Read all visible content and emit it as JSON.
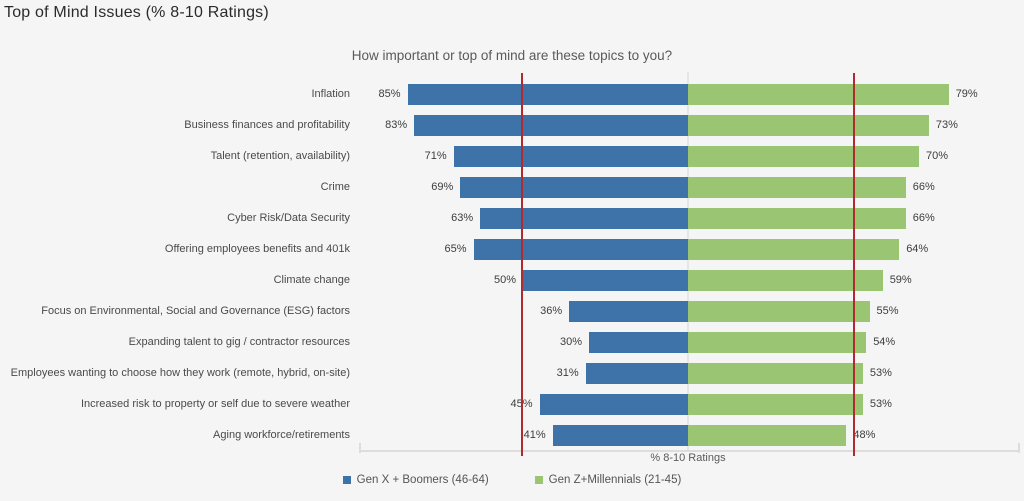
{
  "page": {
    "title": "Top of Mind Issues (% 8-10 Ratings)"
  },
  "chart_data": {
    "type": "bar",
    "orientation": "diverging-horizontal",
    "title": "How important or top of mind are these topics to you?",
    "xlabel": "% 8-10 Ratings",
    "value_suffix": "%",
    "axis_range": [
      0,
      100
    ],
    "grid": false,
    "legend_position": "bottom",
    "categories": [
      "Inflation",
      "Business finances and profitability",
      "Talent (retention, availability)",
      "Crime",
      "Cyber Risk/Data Security",
      "Offering employees benefits and 401k",
      "Climate change",
      "Focus on Environmental, Social and Governance (ESG) factors",
      "Expanding talent to gig / contractor resources",
      "Employees wanting to choose how they work (remote, hybrid, on-site)",
      "Increased risk to property or self due to severe weather",
      "Aging workforce/retirements"
    ],
    "series": [
      {
        "name": "Gen X + Boomers (46-64)",
        "side": "left",
        "color": "#3e73a9",
        "values": [
          85,
          83,
          71,
          69,
          63,
          65,
          50,
          36,
          30,
          31,
          45,
          41
        ]
      },
      {
        "name": "Gen Z+Millennials (21-45)",
        "side": "right",
        "color": "#9ac573",
        "values": [
          79,
          73,
          70,
          66,
          66,
          64,
          59,
          55,
          54,
          53,
          53,
          48
        ]
      }
    ],
    "reference_lines": [
      {
        "side": "left",
        "value": 50,
        "color": "#b02a30"
      },
      {
        "side": "right",
        "value": 50,
        "color": "#b02a30"
      }
    ],
    "colors": {
      "background": "#f5f5f6",
      "axis": "#dddddd",
      "center_axis": "#e6e6e8"
    }
  }
}
